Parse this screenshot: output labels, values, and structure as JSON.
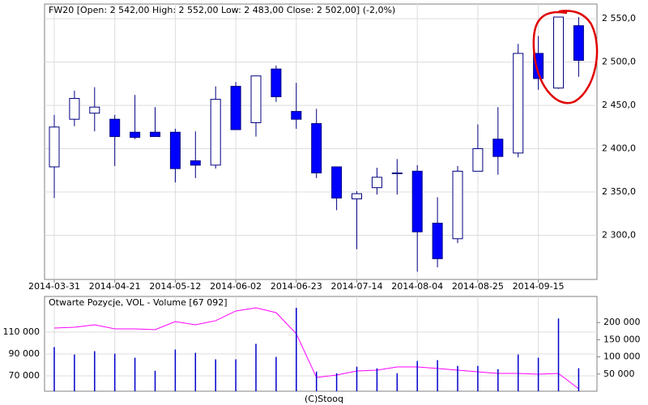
{
  "chart_data": [
    {
      "type": "candlestick",
      "title": "FW20 [Open: 2 542,00  High: 2 552,00  Low: 2 483,00  Close: 2 502,00] (-2,0%)",
      "categories": [
        "2014-03-31",
        null,
        null,
        "2014-04-21",
        null,
        null,
        "2014-05-12",
        null,
        null,
        "2014-06-02",
        null,
        null,
        "2014-06-23",
        null,
        null,
        "2014-07-14",
        null,
        null,
        "2014-08-04",
        null,
        null,
        "2014-08-25",
        null,
        null,
        "2014-09-15",
        null,
        null
      ],
      "open": [
        2379,
        2434,
        2441,
        2434,
        2419,
        2419,
        2419,
        2386,
        2381,
        2472,
        2430,
        2492,
        2443,
        2429,
        2379,
        2342,
        2355,
        2372,
        2374,
        2314,
        2296,
        2374,
        2411,
        2395,
        2510,
        2470,
        2542
      ],
      "high": [
        2439,
        2467,
        2471,
        2439,
        2462,
        2448,
        2423,
        2420,
        2472,
        2477,
        2484,
        2496,
        2476,
        2446,
        2379,
        2351,
        2378,
        2388,
        2381,
        2344,
        2380,
        2428,
        2448,
        2521,
        2530,
        2552,
        2552
      ],
      "low": [
        2343,
        2426,
        2420,
        2380,
        2411,
        2414,
        2361,
        2366,
        2377,
        2422,
        2414,
        2454,
        2423,
        2366,
        2329,
        2284,
        2347,
        2347,
        2258,
        2263,
        2291,
        2374,
        2370,
        2390,
        2468,
        2469,
        2483
      ],
      "close": [
        2425,
        2458,
        2448,
        2414,
        2413,
        2414,
        2377,
        2381,
        2457,
        2422,
        2484,
        2460,
        2434,
        2372,
        2343,
        2348,
        2367,
        2372,
        2304,
        2273,
        2374,
        2400,
        2391,
        2510,
        2481,
        2552,
        2502
      ],
      "up_color": "#ffffff",
      "down_color": "#0000ff",
      "edge_color": "#000080",
      "ylim": [
        2249,
        2567
      ],
      "yticks": [
        {
          "value": 2300,
          "label": "2 300,0"
        },
        {
          "value": 2350,
          "label": "2 350,0"
        },
        {
          "value": 2400,
          "label": "2 400,0"
        },
        {
          "value": 2450,
          "label": "2 450,0"
        },
        {
          "value": 2500,
          "label": "2 500,0"
        },
        {
          "value": 2550,
          "label": "2 550,0"
        }
      ],
      "grid": true
    },
    {
      "type": "volume",
      "title": "Otwarte Pozycje, VOL - Volume [67 092]",
      "series": [
        {
          "type": "line",
          "color": "#ff00ff",
          "values": [
            113700,
            114400,
            116700,
            113000,
            113000,
            112200,
            119600,
            116700,
            120400,
            129300,
            132200,
            127800,
            108500,
            68500,
            70700,
            74400,
            75200,
            78100,
            78100,
            76700,
            75200,
            73700,
            72200,
            72200,
            71500,
            72200,
            58100
          ]
        },
        {
          "type": "bar",
          "axis": "y2",
          "color": "#0000cc",
          "values": [
            128600,
            107000,
            116700,
            109500,
            97600,
            59500,
            121400,
            112000,
            92900,
            92900,
            138000,
            100000,
            242900,
            57100,
            52400,
            71400,
            66700,
            52400,
            88100,
            90500,
            73800,
            73800,
            64300,
            107100,
            97600,
            211900,
            67092
          ]
        }
      ],
      "ylim": [
        55900,
        142600
      ],
      "yticks": [
        {
          "value": 70000,
          "label": "70 000"
        },
        {
          "value": 90000,
          "label": "90 000"
        },
        {
          "value": 110000,
          "label": "110 000"
        }
      ],
      "y2lim": [
        0,
        276000
      ],
      "y2ticks": [
        {
          "value": 50000,
          "label": "50 000"
        },
        {
          "value": 100000,
          "label": "100 000"
        },
        {
          "value": 150000,
          "label": "150 000"
        },
        {
          "value": 200000,
          "label": "200 000"
        }
      ],
      "grid": true
    }
  ],
  "footer": "(C)Stooq"
}
